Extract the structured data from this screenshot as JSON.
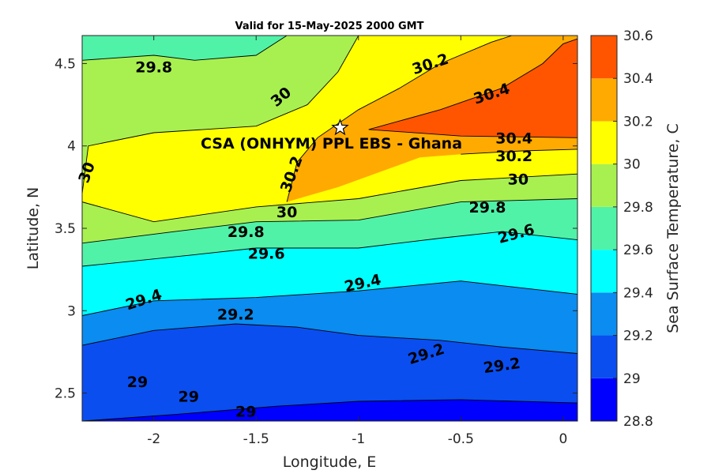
{
  "chart_data": {
    "type": "heatmap",
    "subtype": "filled-contour",
    "title": "Valid for 15-May-2025 2000 GMT",
    "xlabel": "Longitude, E",
    "ylabel": "Latitude, N",
    "xlim": [
      -2.35,
      0.07
    ],
    "ylim": [
      2.33,
      4.67
    ],
    "xticks": [
      -2,
      -1.5,
      -1,
      -0.5,
      0
    ],
    "xtick_labels": [
      "-2",
      "-1.5",
      "-1",
      "-0.5",
      "0"
    ],
    "yticks": [
      2.5,
      3,
      3.5,
      4,
      4.5
    ],
    "ytick_labels": [
      "2.5",
      "3",
      "3.5",
      "4",
      "4.5"
    ],
    "colorbar": {
      "label": "Sea Surface Temperature, C",
      "levels": [
        28.8,
        29.0,
        29.2,
        29.4,
        29.6,
        29.8,
        30.0,
        30.2,
        30.4,
        30.6
      ],
      "tick_labels": [
        "28.8",
        "29",
        "29.2",
        "29.4",
        "29.6",
        "29.8",
        "30",
        "30.2",
        "30.4",
        "30.6"
      ],
      "colors": [
        "#0000ff",
        "#0a4ef0",
        "#0a8cf0",
        "#00ffff",
        "#50f2a8",
        "#a8f050",
        "#ffff00",
        "#ffaa00",
        "#ff5500"
      ]
    },
    "contours": [
      {
        "value": 29.0,
        "line": [
          [
            -2.35,
            2.33
          ],
          [
            -1.9,
            2.37
          ],
          [
            -1.4,
            2.42
          ],
          [
            -1.0,
            2.45
          ],
          [
            -0.5,
            2.46
          ],
          [
            0.07,
            2.44
          ]
        ]
      },
      {
        "value": 29.2,
        "line": [
          [
            -2.35,
            2.79
          ],
          [
            -2.0,
            2.88
          ],
          [
            -1.6,
            2.92
          ],
          [
            -1.3,
            2.9
          ],
          [
            -1.0,
            2.85
          ],
          [
            -0.6,
            2.82
          ],
          [
            -0.3,
            2.78
          ],
          [
            0.07,
            2.74
          ]
        ]
      },
      {
        "value": 29.4,
        "line": [
          [
            -2.35,
            2.97
          ],
          [
            -2.0,
            3.06
          ],
          [
            -1.5,
            3.08
          ],
          [
            -1.0,
            3.12
          ],
          [
            -0.5,
            3.18
          ],
          [
            0.07,
            3.1
          ]
        ]
      },
      {
        "value": 29.6,
        "line": [
          [
            -2.35,
            3.27
          ],
          [
            -1.8,
            3.34
          ],
          [
            -1.5,
            3.38
          ],
          [
            -1.0,
            3.38
          ],
          [
            -0.6,
            3.44
          ],
          [
            -0.3,
            3.48
          ],
          [
            0.07,
            3.43
          ]
        ]
      },
      {
        "value": 29.8,
        "line": [
          [
            -2.35,
            3.41
          ],
          [
            -1.9,
            3.48
          ],
          [
            -1.5,
            3.54
          ],
          [
            -1.0,
            3.55
          ],
          [
            -0.5,
            3.66
          ],
          [
            0.07,
            3.68
          ]
        ]
      },
      {
        "value": 30.0,
        "line": [
          [
            -2.35,
            3.66
          ],
          [
            -2.0,
            3.54
          ],
          [
            -1.5,
            3.63
          ],
          [
            -1.0,
            3.68
          ],
          [
            -0.5,
            3.79
          ],
          [
            0.07,
            3.83
          ]
        ]
      },
      {
        "value": 30.0,
        "line": [
          [
            -2.35,
            3.71
          ],
          [
            -2.32,
            4.0
          ],
          [
            -2.0,
            4.08
          ],
          [
            -1.5,
            4.12
          ],
          [
            -1.25,
            4.25
          ],
          [
            -1.1,
            4.45
          ],
          [
            -1.0,
            4.67
          ]
        ]
      },
      {
        "value": 29.8,
        "line": [
          [
            -2.35,
            4.52
          ],
          [
            -2.0,
            4.55
          ],
          [
            -1.8,
            4.52
          ],
          [
            -1.5,
            4.55
          ],
          [
            -1.35,
            4.67
          ]
        ]
      },
      {
        "value": 30.2,
        "line": [
          [
            -1.35,
            3.66
          ],
          [
            -1.3,
            3.9
          ],
          [
            -1.2,
            4.05
          ],
          [
            -1.0,
            4.22
          ],
          [
            -0.8,
            4.35
          ],
          [
            -0.6,
            4.5
          ],
          [
            -0.35,
            4.63
          ],
          [
            -0.25,
            4.67
          ]
        ]
      },
      {
        "value": 30.2,
        "line": [
          [
            -0.5,
            3.95
          ],
          [
            -0.2,
            3.97
          ],
          [
            0.07,
            3.98
          ]
        ]
      },
      {
        "value": 30.4,
        "line": [
          [
            -0.95,
            4.1
          ],
          [
            -0.6,
            4.22
          ],
          [
            -0.3,
            4.35
          ],
          [
            -0.1,
            4.5
          ],
          [
            0.0,
            4.62
          ],
          [
            0.07,
            4.65
          ]
        ]
      },
      {
        "value": 30.4,
        "line": [
          [
            -0.95,
            4.1
          ],
          [
            -0.5,
            4.06
          ],
          [
            0.07,
            4.05
          ]
        ]
      }
    ],
    "contour_labels": [
      {
        "text": "29.8",
        "x": -2.0,
        "y": 4.48,
        "angle": 0
      },
      {
        "text": "30",
        "x": -1.38,
        "y": 4.3,
        "angle": -40
      },
      {
        "text": "30.2",
        "x": -0.65,
        "y": 4.5,
        "angle": -18
      },
      {
        "text": "30.4",
        "x": -0.35,
        "y": 4.32,
        "angle": -18
      },
      {
        "text": "30",
        "x": -2.33,
        "y": 3.84,
        "angle": -70
      },
      {
        "text": "30.2",
        "x": -1.33,
        "y": 3.83,
        "angle": -70
      },
      {
        "text": "30.4",
        "x": -0.24,
        "y": 4.05,
        "angle": 0
      },
      {
        "text": "30.2",
        "x": -0.24,
        "y": 3.94,
        "angle": 0
      },
      {
        "text": "30",
        "x": -0.22,
        "y": 3.8,
        "angle": 0
      },
      {
        "text": "30",
        "x": -1.35,
        "y": 3.6,
        "angle": 0
      },
      {
        "text": "29.8",
        "x": -0.37,
        "y": 3.63,
        "angle": 0
      },
      {
        "text": "29.8",
        "x": -1.55,
        "y": 3.48,
        "angle": 0
      },
      {
        "text": "29.6",
        "x": -0.23,
        "y": 3.47,
        "angle": -15
      },
      {
        "text": "29.6",
        "x": -1.45,
        "y": 3.35,
        "angle": 0
      },
      {
        "text": "29.4",
        "x": -0.98,
        "y": 3.17,
        "angle": -12
      },
      {
        "text": "29.4",
        "x": -2.05,
        "y": 3.07,
        "angle": -18
      },
      {
        "text": "29.2",
        "x": -1.6,
        "y": 2.98,
        "angle": 0
      },
      {
        "text": "29.2",
        "x": -0.67,
        "y": 2.74,
        "angle": -18
      },
      {
        "text": "29.2",
        "x": -0.3,
        "y": 2.67,
        "angle": -8
      },
      {
        "text": "29",
        "x": -2.08,
        "y": 2.57,
        "angle": 0
      },
      {
        "text": "29",
        "x": -1.83,
        "y": 2.48,
        "angle": 0
      },
      {
        "text": "29",
        "x": -1.55,
        "y": 2.39,
        "angle": 0
      }
    ],
    "site": {
      "label": "CSA (ONHYM) PPL EBS  - Ghana",
      "x": -1.09,
      "y": 4.11,
      "marker": "star"
    }
  }
}
